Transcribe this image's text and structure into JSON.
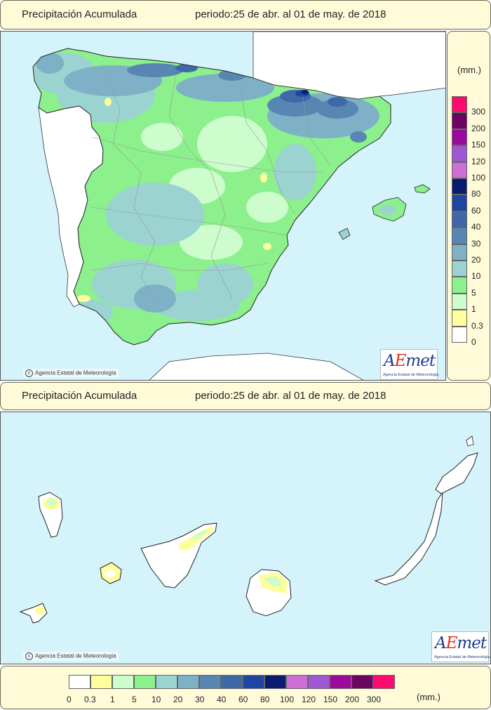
{
  "top_header": {
    "title": "Precipitación Acumulada",
    "period": "periodo:25 de abr. al 01 de may. de 2018"
  },
  "bottom_header": {
    "title": "Precipitación Acumulada",
    "period": "periodo:25 de abr. al 01 de may. de 2018"
  },
  "copyright": "Agencia Estatal de Meteorología",
  "logo": {
    "name_a": "A",
    "name_e": "E",
    "name_rest": "met",
    "subtitle": "Agencia Estatal de Meteorología"
  },
  "legend": {
    "unit": "(mm.)",
    "classes": [
      {
        "label": "0",
        "color": "#ffffff"
      },
      {
        "label": "0.3",
        "color": "#fefe9a"
      },
      {
        "label": "1",
        "color": "#cdfccd"
      },
      {
        "label": "5",
        "color": "#8cf08c"
      },
      {
        "label": "10",
        "color": "#9bd3d0"
      },
      {
        "label": "20",
        "color": "#7eb1c6"
      },
      {
        "label": "30",
        "color": "#5886b3"
      },
      {
        "label": "40",
        "color": "#3e68a8"
      },
      {
        "label": "60",
        "color": "#1e45a2"
      },
      {
        "label": "80",
        "color": "#0b1b6d"
      },
      {
        "label": "100",
        "color": "#cd6fd6"
      },
      {
        "label": "120",
        "color": "#9f58d3"
      },
      {
        "label": "150",
        "color": "#9b0b9b"
      },
      {
        "label": "200",
        "color": "#6e0461"
      },
      {
        "label": "300",
        "color": "#fd0a6f"
      }
    ]
  },
  "map_colors": {
    "sea": "#d4f3fb",
    "land": "#ffffff"
  }
}
